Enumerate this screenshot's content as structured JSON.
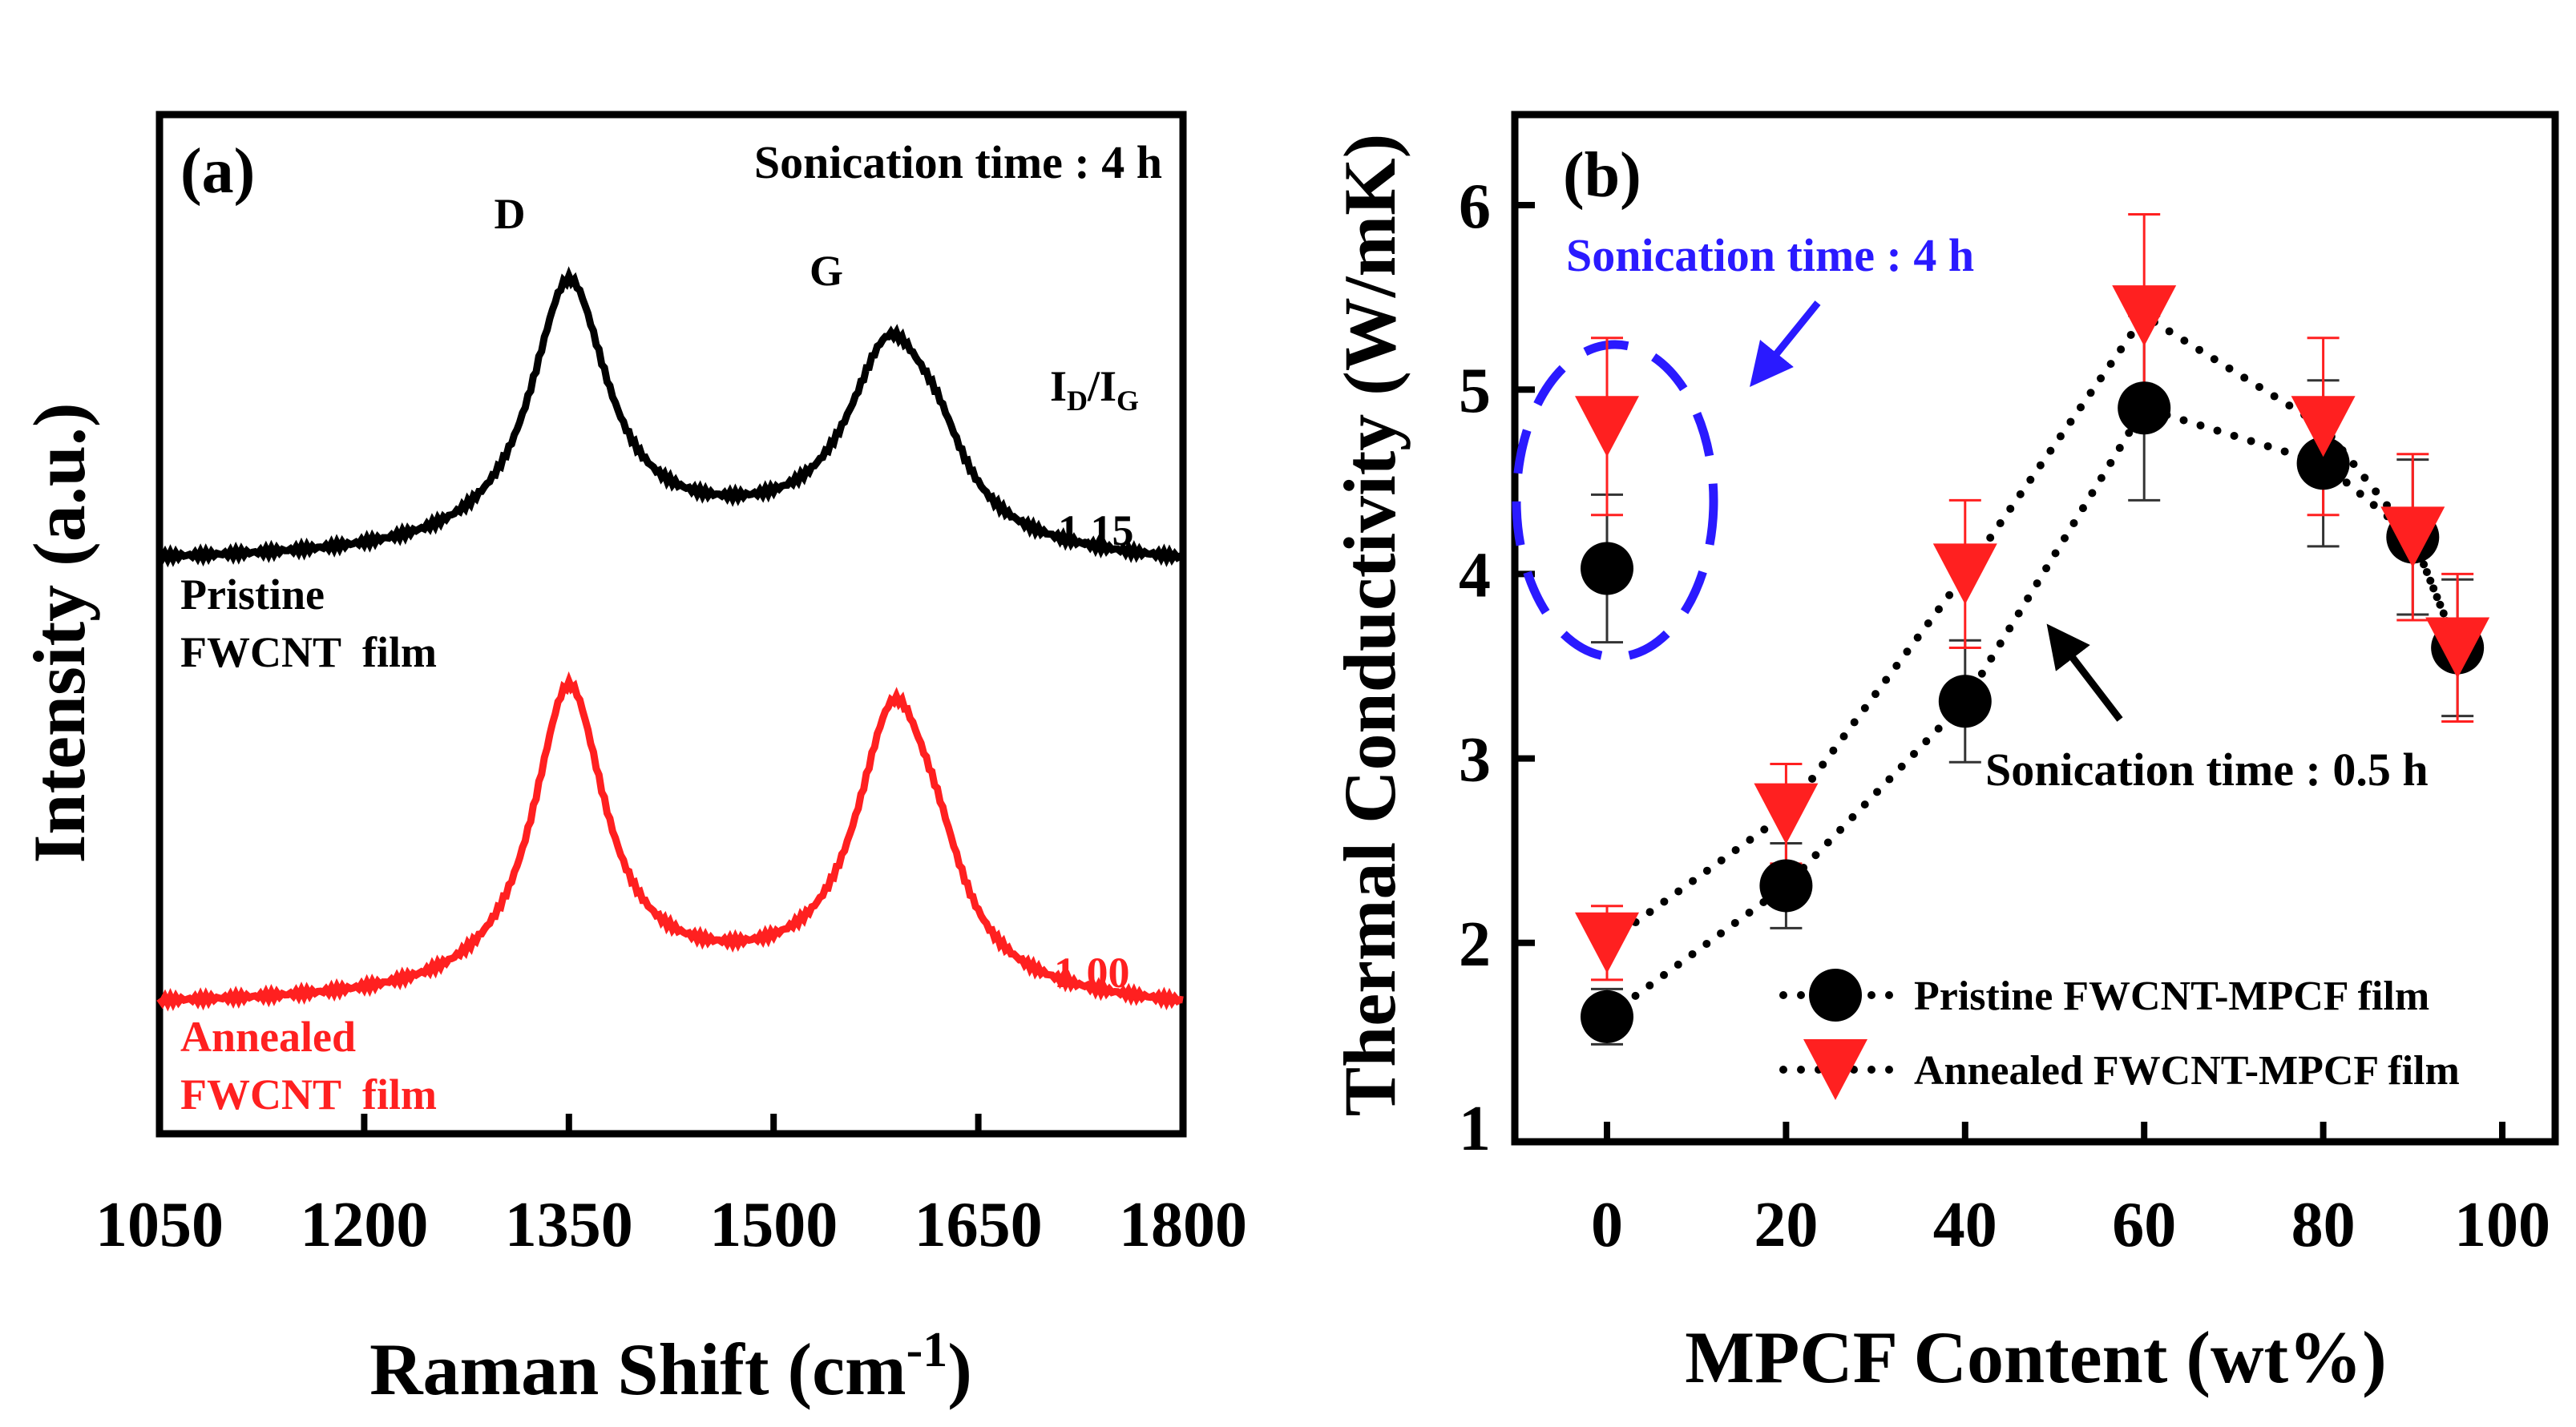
{
  "chart_data": [
    {
      "type": "line",
      "panel_label": "(a)",
      "title": "Sonication time : 4 h",
      "xlabel": "Raman Shift (cm",
      "xlabel_sup": "-1",
      "xlabel_close": ")",
      "ylabel": "Intensity (a.u.)",
      "xlim": [
        1050,
        1800
      ],
      "ylim": [
        0,
        10
      ],
      "xticks": [
        1050,
        1200,
        1350,
        1500,
        1650,
        1800
      ],
      "peak_labels": [
        {
          "text": "D",
          "x": 1350
        },
        {
          "text": "G",
          "x": 1585
        }
      ],
      "ratio_header": {
        "main": "I",
        "sub1": "D",
        "slash": "/I",
        "sub2": "G"
      },
      "series": [
        {
          "name": "Pristine",
          "name2": "FWCNT  film",
          "ratio": "1.15",
          "color": "#000000",
          "baseline": [
            5.57,
            5.5
          ],
          "peaks": [
            {
              "center": 1350,
              "amp": 2.55,
              "width": 34
            },
            {
              "center": 1585,
              "amp": 1.85,
              "width": 38
            },
            {
              "center": 1620,
              "amp": 0.5,
              "width": 25
            },
            {
              "center": 1470,
              "amp": 0.35,
              "width": 180
            }
          ]
        },
        {
          "name": "Annealed",
          "name2": "FWCNT  film",
          "ratio": "1.00",
          "color": "#ff2020",
          "baseline": [
            1.22,
            1.15
          ],
          "peaks": [
            {
              "center": 1350,
              "amp": 2.95,
              "width": 32
            },
            {
              "center": 1588,
              "amp": 2.6,
              "width": 34
            },
            {
              "center": 1620,
              "amp": 0.6,
              "width": 25
            },
            {
              "center": 1470,
              "amp": 0.3,
              "width": 180
            }
          ]
        }
      ]
    },
    {
      "type": "scatter",
      "panel_label": "(b)",
      "xlabel": "MPCF Content (wt%)",
      "ylabel": "Thermal Conductivity (W/mK)",
      "xlim": [
        -10,
        105
      ],
      "ylim": [
        1,
        6.6
      ],
      "xticks": [
        0,
        20,
        40,
        60,
        80,
        100
      ],
      "yticks": [
        1,
        2,
        3,
        4,
        5,
        6
      ],
      "annotations": {
        "blue": "Sonication time : 4 h",
        "black": "Sonication time : 0.5 h"
      },
      "series": [
        {
          "name": "Pristine FWCNT-MPCF film",
          "marker": "circle",
          "color": "#000000",
          "x": [
            0,
            20,
            40,
            60,
            80,
            90,
            95
          ],
          "y": [
            1.6,
            2.31,
            3.31,
            4.9,
            4.6,
            4.2,
            3.6
          ],
          "err": [
            0.15,
            0.23,
            0.33,
            0.5,
            0.45,
            0.42,
            0.37
          ],
          "sonication_4h": {
            "x": 0,
            "y": 4.03,
            "err": 0.4
          }
        },
        {
          "name": "Annealed FWCNT-MPCF film",
          "marker": "triangle-down",
          "color": "#ff2020",
          "x": [
            0,
            20,
            40,
            60,
            80,
            90,
            95
          ],
          "y": [
            2.0,
            2.7,
            4.0,
            5.4,
            4.8,
            4.2,
            3.6
          ],
          "err": [
            0.2,
            0.27,
            0.4,
            0.55,
            0.48,
            0.45,
            0.4
          ],
          "sonication_4h": {
            "x": 0,
            "y": 4.8,
            "err": 0.48
          }
        }
      ]
    }
  ]
}
